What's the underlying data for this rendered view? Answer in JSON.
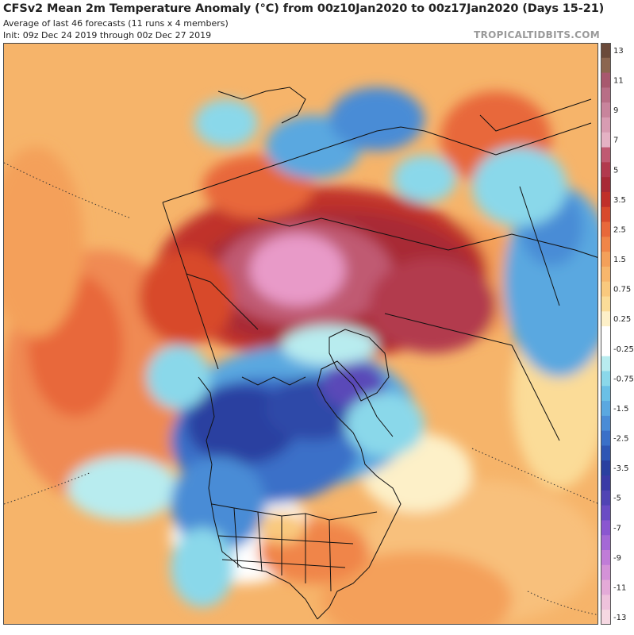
{
  "header": {
    "title": "CFSv2 Mean 2m Temperature Anomaly (°C) from 00z10Jan2020 to 00z17Jan2020 (Days 15-21)",
    "subtitle": "Average of last 46 forecasts (11 runs x 4 members)",
    "init": "Init: 09z Dec 24 2019 through 00z Dec 27 2019",
    "brand": "TROPICALTIDBITS.COM"
  },
  "colorbar": {
    "levels": [
      {
        "label": "13",
        "color": "#6b4a3a"
      },
      {
        "label": "",
        "color": "#8c6650"
      },
      {
        "label": "11",
        "color": "#a8586e"
      },
      {
        "label": "",
        "color": "#b86e86"
      },
      {
        "label": "9",
        "color": "#c8849c"
      },
      {
        "label": "",
        "color": "#d89cb2"
      },
      {
        "label": "7",
        "color": "#e4b2c4"
      },
      {
        "label": "",
        "color": "#c05a72"
      },
      {
        "label": "5",
        "color": "#b23a4e"
      },
      {
        "label": "",
        "color": "#a82a36"
      },
      {
        "label": "3.5",
        "color": "#c0302a"
      },
      {
        "label": "",
        "color": "#d84a2c"
      },
      {
        "label": "2.5",
        "color": "#e8683a"
      },
      {
        "label": "",
        "color": "#f08548"
      },
      {
        "label": "1.5",
        "color": "#f4a05a"
      },
      {
        "label": "",
        "color": "#f7b66c"
      },
      {
        "label": "0.75",
        "color": "#f9c97e"
      },
      {
        "label": "",
        "color": "#fbdc98"
      },
      {
        "label": "0.25",
        "color": "#fdf0c8"
      },
      {
        "label": "",
        "color": "#ffffff"
      },
      {
        "label": "-0.25",
        "color": "#ffffff"
      },
      {
        "label": "",
        "color": "#b8ecef"
      },
      {
        "label": "-0.75",
        "color": "#8ad8ea"
      },
      {
        "label": "",
        "color": "#6ac0e6"
      },
      {
        "label": "-1.5",
        "color": "#5aa8e0"
      },
      {
        "label": "",
        "color": "#4a8cd6"
      },
      {
        "label": "-2.5",
        "color": "#3a70c8"
      },
      {
        "label": "",
        "color": "#2e56b4"
      },
      {
        "label": "-3.5",
        "color": "#2a40a0"
      },
      {
        "label": "",
        "color": "#3a3aa6"
      },
      {
        "label": "-5",
        "color": "#5044b4"
      },
      {
        "label": "",
        "color": "#6a4cc4"
      },
      {
        "label": "-7",
        "color": "#8a56d0"
      },
      {
        "label": "",
        "color": "#a468d6"
      },
      {
        "label": "-9",
        "color": "#c07cd8"
      },
      {
        "label": "",
        "color": "#d492d8"
      },
      {
        "label": "-11",
        "color": "#e4aad8"
      },
      {
        "label": "",
        "color": "#efc2dc"
      },
      {
        "label": "-13",
        "color": "#f6d8e2"
      }
    ]
  },
  "map": {
    "palette": {
      "background": "#f6b46a",
      "deep_red": "#b8303a",
      "pink": "#e89ac8",
      "light_blue": "#8ad8ea",
      "blue": "#4a8cd6",
      "dark_blue": "#2e48a8",
      "purple": "#5a48b8",
      "outline": "#111111"
    }
  }
}
